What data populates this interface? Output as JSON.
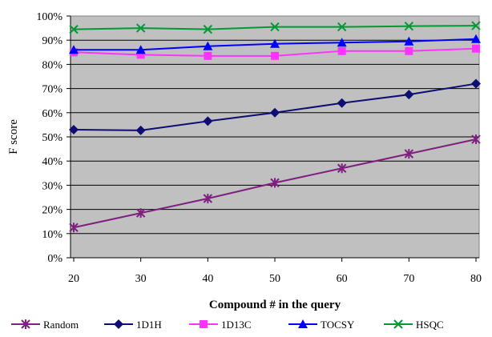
{
  "chart_data": {
    "type": "line",
    "title": "",
    "xlabel": "Compound # in the query",
    "ylabel": "F score",
    "x": [
      20,
      30,
      40,
      50,
      60,
      70,
      80
    ],
    "x_tick_labels": [
      "20",
      "30",
      "40",
      "50",
      "60",
      "70",
      "80"
    ],
    "y_tick_labels": [
      "0%",
      "10%",
      "20%",
      "30%",
      "40%",
      "50%",
      "60%",
      "70%",
      "80%",
      "90%",
      "100%"
    ],
    "ylim": [
      0,
      100
    ],
    "y_ticks": [
      0,
      10,
      20,
      30,
      40,
      50,
      60,
      70,
      80,
      90,
      100
    ],
    "grid": "horizontal",
    "plot_background": "#c0c0c0",
    "legend_position": "bottom",
    "series": [
      {
        "name": "Random",
        "color": "#7f1f7f",
        "marker": "asterisk",
        "values": [
          12.5,
          18.5,
          24.5,
          31,
          37,
          43,
          49
        ]
      },
      {
        "name": "1D1H",
        "color": "#0d0d73",
        "marker": "diamond",
        "values": [
          53,
          52.7,
          56.5,
          60,
          64,
          67.5,
          72
        ]
      },
      {
        "name": "1D13C",
        "color": "#ff33ff",
        "marker": "square",
        "values": [
          85,
          84,
          83.5,
          83.5,
          85.5,
          85.5,
          86.5
        ]
      },
      {
        "name": "TOCSY",
        "color": "#0000ff",
        "marker": "triangle",
        "values": [
          86,
          86,
          87.5,
          88.5,
          89,
          89.5,
          90.5
        ]
      },
      {
        "name": "HSQC",
        "color": "#009933",
        "marker": "x",
        "values": [
          94.5,
          95,
          94.5,
          95.5,
          95.5,
          95.8,
          96
        ]
      }
    ]
  }
}
